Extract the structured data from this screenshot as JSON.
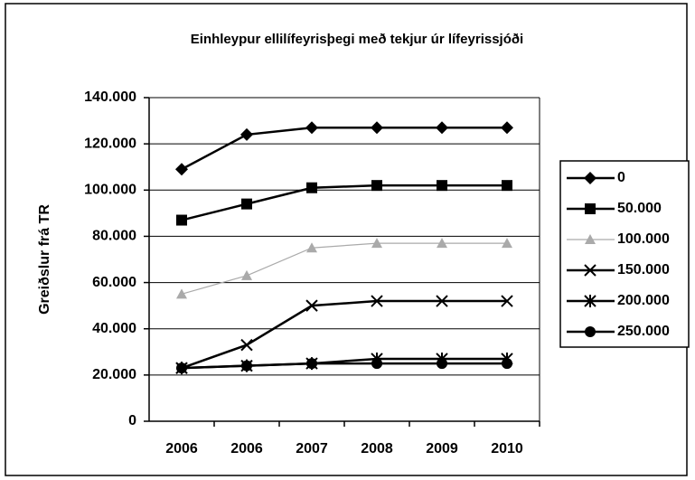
{
  "chart_data": {
    "type": "line",
    "title": "Einhleypur ellilífeyrisþegi með tekjur úr lífeyrissjóði",
    "y_label": "Greiðslur frá TR",
    "categories": [
      "2006",
      "2006",
      "2007",
      "2008",
      "2009",
      "2010"
    ],
    "series": [
      {
        "name": "0",
        "color": "#000000",
        "marker": "diamond",
        "values": [
          109000,
          124000,
          127000,
          127000,
          127000,
          127000
        ]
      },
      {
        "name": "50.000",
        "color": "#000000",
        "marker": "square",
        "values": [
          87000,
          94000,
          101000,
          102000,
          102000,
          102000
        ]
      },
      {
        "name": "100.000",
        "color": "#aaaaaa",
        "marker": "triangle",
        "values": [
          55000,
          63000,
          75000,
          77000,
          77000,
          77000
        ]
      },
      {
        "name": "150.000",
        "color": "#000000",
        "marker": "x",
        "values": [
          23000,
          33000,
          50000,
          52000,
          52000,
          52000
        ]
      },
      {
        "name": "200.000",
        "color": "#000000",
        "marker": "star",
        "values": [
          23000,
          24000,
          25000,
          27000,
          27000,
          27000
        ]
      },
      {
        "name": "250.000",
        "color": "#000000",
        "marker": "circle",
        "values": [
          23000,
          24000,
          25000,
          25000,
          25000,
          25000
        ]
      }
    ],
    "ylim": [
      0,
      140000
    ],
    "yticks": [
      0,
      {
        "value": 20000,
        "label": "20.000"
      },
      {
        "value": 40000,
        "label": "40.000"
      },
      {
        "value": 60000,
        "label": "60.000"
      },
      {
        "value": 80000,
        "label": "80.000"
      },
      {
        "value": 100000,
        "label": "100.000"
      },
      {
        "value": 120000,
        "label": "120.000"
      },
      {
        "value": 140000,
        "label": "140.000"
      }
    ],
    "grid": true,
    "legend": "right"
  }
}
